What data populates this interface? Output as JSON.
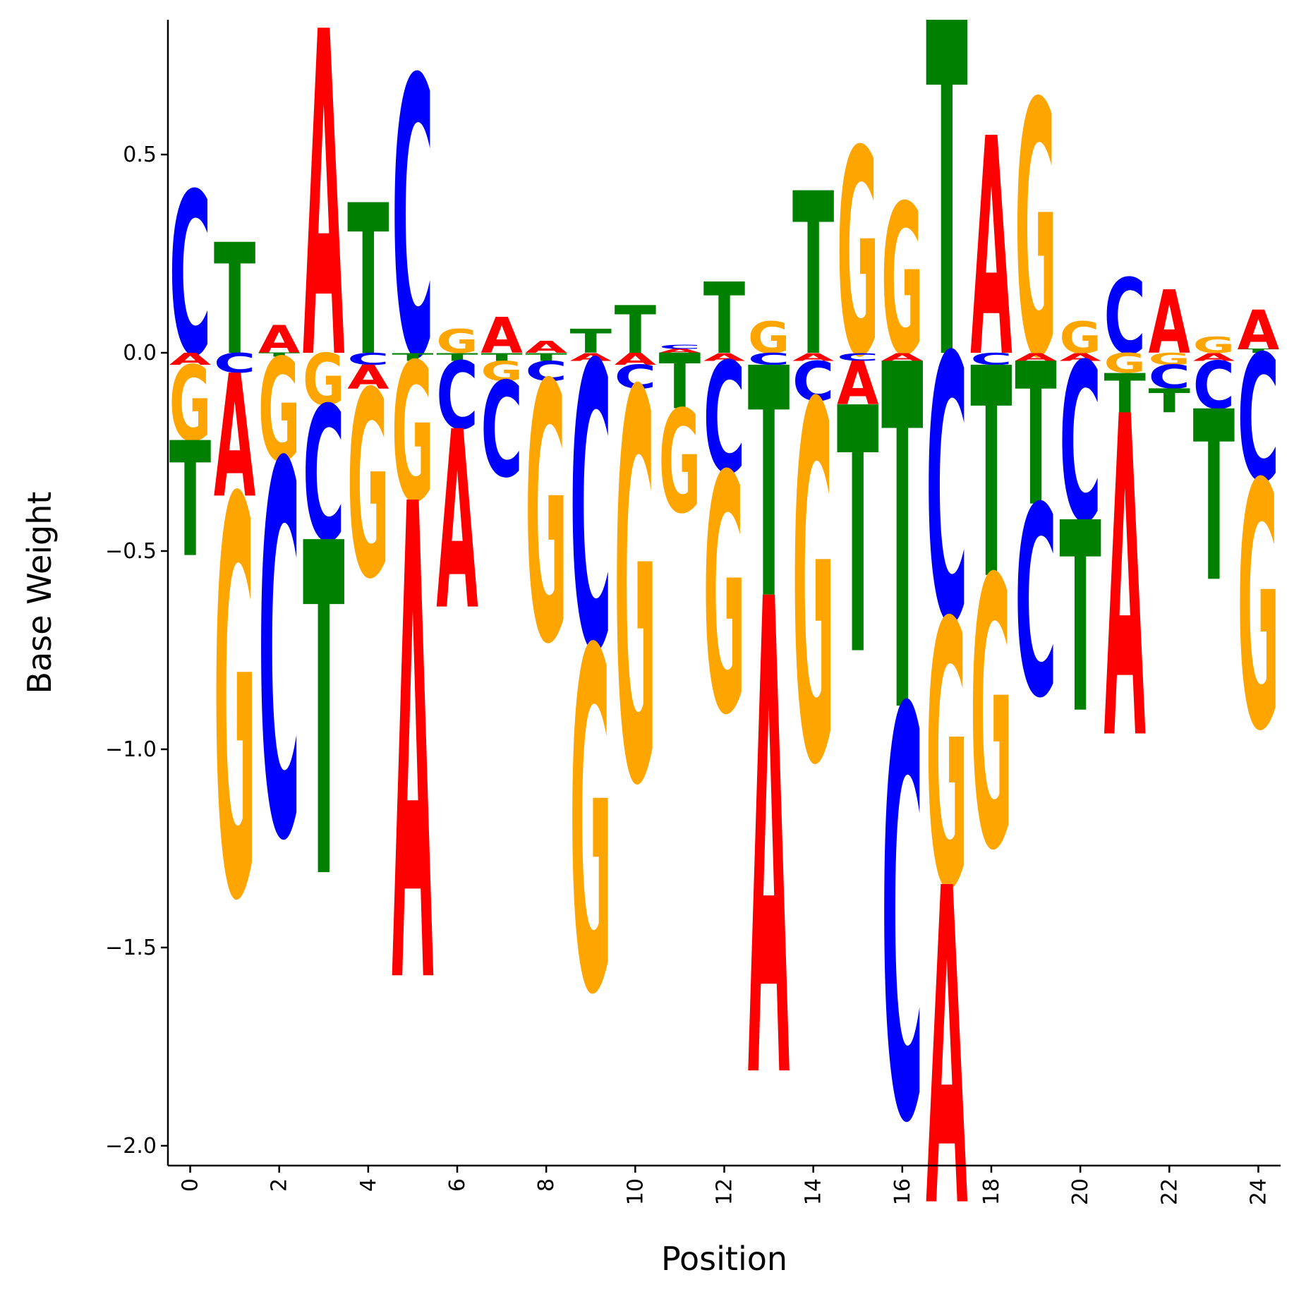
{
  "chart_data": {
    "type": "sequence-logo",
    "xlabel": "Position",
    "ylabel": "Base Weight",
    "ylim": [
      -2.05,
      0.84
    ],
    "xlim": [
      -0.5,
      24.5
    ],
    "x_ticks": [
      0,
      2,
      4,
      6,
      8,
      10,
      12,
      14,
      16,
      18,
      20,
      22,
      24
    ],
    "y_ticks": [
      0.5,
      0.0,
      -0.5,
      -1.0,
      -1.5,
      -2.0
    ],
    "y_tick_labels": [
      "0.5",
      "0.0",
      "−0.5",
      "−1.0",
      "−1.5",
      "−2.0"
    ],
    "colors": {
      "A": "#ff0000",
      "C": "#0000ff",
      "G": "#ffa500",
      "T": "#008000"
    },
    "positions": [
      {
        "pos": 0,
        "weights": {
          "A": -0.03,
          "C": 0.41,
          "G": -0.19,
          "T": -0.29
        }
      },
      {
        "pos": 1,
        "weights": {
          "A": -0.31,
          "C": -0.05,
          "G": -1.0,
          "T": 0.28
        }
      },
      {
        "pos": 2,
        "weights": {
          "A": 0.07,
          "C": -0.94,
          "G": -0.26,
          "T": -0.01
        }
      },
      {
        "pos": 3,
        "weights": {
          "A": 0.82,
          "C": -0.34,
          "G": -0.13,
          "T": -0.84
        }
      },
      {
        "pos": 4,
        "weights": {
          "A": -0.06,
          "C": -0.03,
          "G": -0.47,
          "T": 0.38
        }
      },
      {
        "pos": 5,
        "weights": {
          "A": -1.2,
          "C": 0.7,
          "G": -0.35,
          "T": -0.02
        }
      },
      {
        "pos": 6,
        "weights": {
          "A": -0.45,
          "C": -0.17,
          "G": 0.06,
          "T": -0.02
        }
      },
      {
        "pos": 7,
        "weights": {
          "A": 0.09,
          "C": -0.24,
          "G": -0.05,
          "T": -0.02
        }
      },
      {
        "pos": 8,
        "weights": {
          "A": 0.03,
          "C": -0.05,
          "G": -0.65,
          "T": -0.02
        }
      },
      {
        "pos": 9,
        "weights": {
          "A": -0.02,
          "C": -0.72,
          "G": -0.86,
          "T": 0.06
        }
      },
      {
        "pos": 10,
        "weights": {
          "A": -0.03,
          "C": -0.06,
          "G": -0.98,
          "T": 0.12
        }
      },
      {
        "pos": 11,
        "weights": {
          "A": 0.01,
          "C": 0.01,
          "G": -0.26,
          "T": -0.14
        }
      },
      {
        "pos": 12,
        "weights": {
          "A": -0.02,
          "C": -0.28,
          "G": -0.6,
          "T": 0.18
        }
      },
      {
        "pos": 13,
        "weights": {
          "A": -1.2,
          "C": -0.03,
          "G": 0.08,
          "T": -0.58
        }
      },
      {
        "pos": 14,
        "weights": {
          "A": -0.02,
          "C": -0.1,
          "G": -0.9,
          "T": 0.41
        }
      },
      {
        "pos": 15,
        "weights": {
          "A": -0.11,
          "C": -0.02,
          "G": 0.52,
          "T": -0.62
        }
      },
      {
        "pos": 16,
        "weights": {
          "A": -0.02,
          "C": -1.03,
          "G": 0.38,
          "T": -0.87
        }
      },
      {
        "pos": 17,
        "weights": {
          "A": -0.8,
          "C": -0.67,
          "G": -0.67,
          "T": 0.84
        }
      },
      {
        "pos": 18,
        "weights": {
          "A": 0.55,
          "C": -0.03,
          "G": -0.68,
          "T": -0.53
        }
      },
      {
        "pos": 19,
        "weights": {
          "A": -0.02,
          "C": -0.48,
          "G": 0.64,
          "T": -0.36
        }
      },
      {
        "pos": 20,
        "weights": {
          "A": -0.02,
          "C": -0.4,
          "G": 0.08,
          "T": -0.48
        }
      },
      {
        "pos": 21,
        "weights": {
          "A": -0.81,
          "C": 0.19,
          "G": -0.05,
          "T": -0.1
        }
      },
      {
        "pos": 22,
        "weights": {
          "A": 0.16,
          "C": -0.06,
          "G": -0.03,
          "T": -0.06
        }
      },
      {
        "pos": 23,
        "weights": {
          "A": -0.02,
          "C": -0.12,
          "G": 0.04,
          "T": -0.43
        }
      },
      {
        "pos": 24,
        "weights": {
          "A": 0.1,
          "C": -0.32,
          "G": -0.62,
          "T": 0.01
        }
      }
    ]
  }
}
